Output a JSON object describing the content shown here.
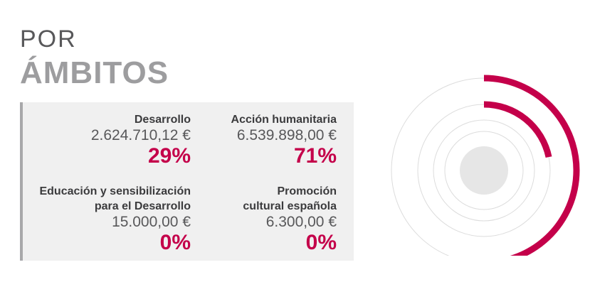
{
  "title": {
    "line1": "POR",
    "line2": "ÁMBITOS"
  },
  "items": [
    {
      "label_line1": "Desarrollo",
      "label_line2": "",
      "amount": "2.624.710,12 €",
      "percent": "29%"
    },
    {
      "label_line1": "Acción humanitaria",
      "label_line2": "",
      "amount": "6.539.898,00 €",
      "percent": "71%"
    },
    {
      "label_line1": "Educación y sensibilización",
      "label_line2": "para el Desarrollo",
      "amount": "15.000,00 €",
      "percent": "0%"
    },
    {
      "label_line1": "Promoción",
      "label_line2": "cultural española",
      "amount": "6.300,00 €",
      "percent": "0%"
    }
  ],
  "colors": {
    "accent": "#c4004a",
    "track": "#dcdcdc",
    "center": "#e6e6e6"
  },
  "chart_data": {
    "type": "radial-bar",
    "categories": [
      "Acción humanitaria",
      "Desarrollo",
      "Promoción cultural española",
      "Educación y sensibilización para el Desarrollo"
    ],
    "values": [
      71,
      29,
      0,
      0
    ],
    "unit": "%",
    "amounts": [
      6539898.0,
      2624710.12,
      6300.0,
      15000.0
    ]
  }
}
